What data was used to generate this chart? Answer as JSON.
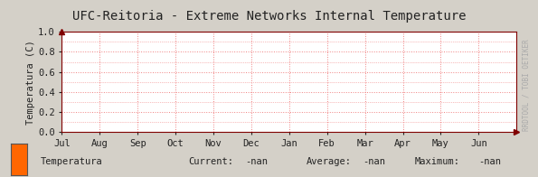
{
  "title": "UFC-Reitoria - Extreme Networks Internal Temperature",
  "ylabel": "Temperatura (C)",
  "bg_color": "#d4d0c8",
  "plot_bg_color": "#ffffff",
  "grid_color": "#f08080",
  "axis_color": "#800000",
  "title_color": "#222222",
  "tick_color": "#222222",
  "ylim": [
    0.0,
    1.0
  ],
  "yticks": [
    0.0,
    0.2,
    0.4,
    0.6,
    0.8,
    1.0
  ],
  "xlabels": [
    "Jul",
    "Aug",
    "Sep",
    "Oct",
    "Nov",
    "Dec",
    "Jan",
    "Feb",
    "Mar",
    "Apr",
    "May",
    "Jun"
  ],
  "legend_label": "Temperatura",
  "legend_color": "#ff6600",
  "current_val": "-nan",
  "average_val": "-nan",
  "maximum_val": "-nan",
  "watermark": "RRDTOOL / TOBI OETIKER",
  "arrow_color": "#800000",
  "title_fontsize": 10,
  "tick_fontsize": 7.5,
  "legend_fontsize": 7.5,
  "watermark_color": "#aaaaaa"
}
